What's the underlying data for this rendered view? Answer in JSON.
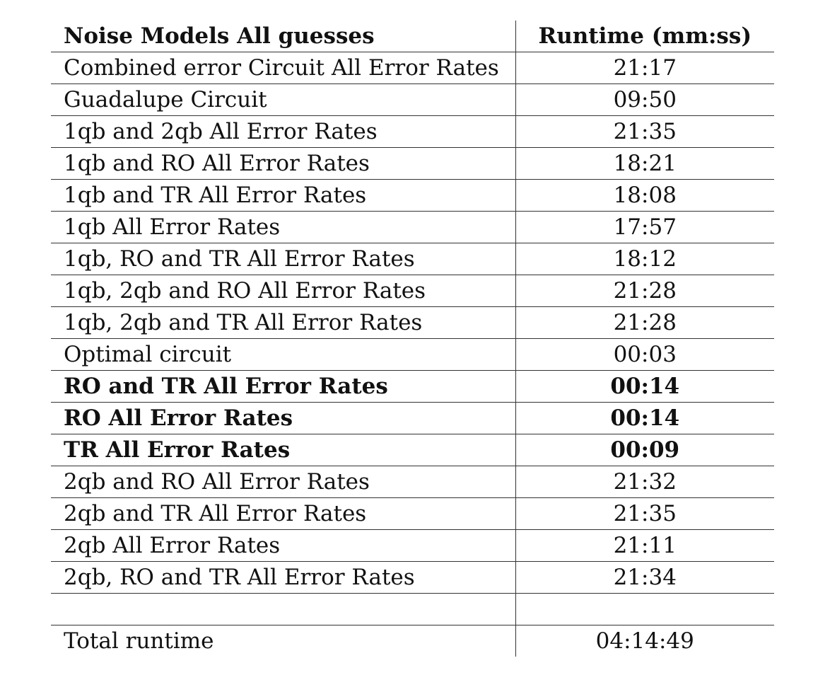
{
  "table": {
    "headers": [
      "Noise Models All guesses",
      "Runtime (mm:ss)"
    ],
    "rows": [
      {
        "model": "Combined error Circuit All Error Rates",
        "runtime": "21:17",
        "bold": false
      },
      {
        "model": "Guadalupe Circuit",
        "runtime": "09:50",
        "bold": false
      },
      {
        "model": "1qb and 2qb All Error Rates",
        "runtime": "21:35",
        "bold": false
      },
      {
        "model": "1qb and RO All Error Rates",
        "runtime": "18:21",
        "bold": false
      },
      {
        "model": "1qb and TR All Error Rates",
        "runtime": "18:08",
        "bold": false
      },
      {
        "model": "1qb All Error Rates",
        "runtime": "17:57",
        "bold": false
      },
      {
        "model": "1qb, RO and TR All Error Rates",
        "runtime": "18:12",
        "bold": false
      },
      {
        "model": "1qb, 2qb and RO All Error Rates",
        "runtime": "21:28",
        "bold": false
      },
      {
        "model": "1qb, 2qb and TR All Error Rates",
        "runtime": "21:28",
        "bold": false
      },
      {
        "model": "Optimal circuit",
        "runtime": "00:03",
        "bold": false
      },
      {
        "model": "RO and TR All Error Rates",
        "runtime": "00:14",
        "bold": true
      },
      {
        "model": "RO All Error Rates",
        "runtime": "00:14",
        "bold": true
      },
      {
        "model": "TR All Error Rates",
        "runtime": "00:09",
        "bold": true
      },
      {
        "model": "2qb and RO All Error Rates",
        "runtime": "21:32",
        "bold": false
      },
      {
        "model": "2qb and TR All Error Rates",
        "runtime": "21:35",
        "bold": false
      },
      {
        "model": "2qb All Error Rates",
        "runtime": "21:11",
        "bold": false
      },
      {
        "model": "2qb, RO and TR All Error Rates",
        "runtime": "21:34",
        "bold": false
      }
    ],
    "total": {
      "label": "Total runtime",
      "runtime": "04:14:49"
    }
  }
}
